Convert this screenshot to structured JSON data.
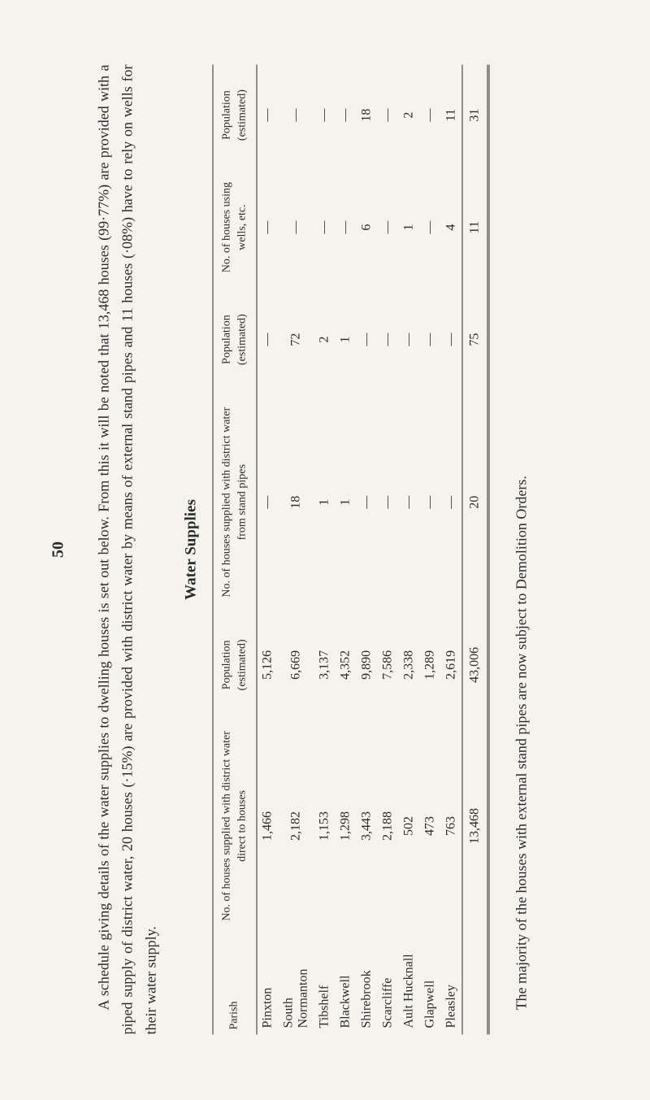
{
  "page_number": "50",
  "intro": "A schedule giving details of the water supplies to dwelling houses is set out below. From this it will be noted that 13,468 houses (99·77%) are provided with a piped supply of district water, 20 houses (·15%) are provided with district water by means of external stand pipes and 11 houses (·08%) have to rely on wells for their water supply.",
  "table_title": "Water Supplies",
  "headers": {
    "parish": "Parish",
    "col1": "No. of houses supplied with district water direct to houses",
    "col2": "Population (estimated)",
    "col3": "No. of houses supplied with district water from stand pipes",
    "col4": "Population (estimated)",
    "col5": "No. of houses using wells, etc.",
    "col6": "Population (estimated)"
  },
  "rows": [
    {
      "parish": "Pinxton",
      "c1": "1,466",
      "c2": "5,126",
      "c3": "—",
      "c4": "—",
      "c5": "—",
      "c6": "—"
    },
    {
      "parish": "South Normanton",
      "c1": "2,182",
      "c2": "6,669",
      "c3": "18",
      "c4": "72",
      "c5": "—",
      "c6": "—"
    },
    {
      "parish": "Tibshelf",
      "c1": "1,153",
      "c2": "3,137",
      "c3": "1",
      "c4": "2",
      "c5": "—",
      "c6": "—"
    },
    {
      "parish": "Blackwell",
      "c1": "1,298",
      "c2": "4,352",
      "c3": "1",
      "c4": "1",
      "c5": "—",
      "c6": "—"
    },
    {
      "parish": "Shirebrook",
      "c1": "3,443",
      "c2": "9,890",
      "c3": "—",
      "c4": "—",
      "c5": "6",
      "c6": "18"
    },
    {
      "parish": "Scarcliffe",
      "c1": "2,188",
      "c2": "7,586",
      "c3": "—",
      "c4": "—",
      "c5": "—",
      "c6": "—"
    },
    {
      "parish": "Ault Hucknall",
      "c1": "502",
      "c2": "2,338",
      "c3": "—",
      "c4": "—",
      "c5": "1",
      "c6": "2"
    },
    {
      "parish": "Glapwell",
      "c1": "473",
      "c2": "1,289",
      "c3": "—",
      "c4": "—",
      "c5": "—",
      "c6": "—"
    },
    {
      "parish": "Pleasley",
      "c1": "763",
      "c2": "2,619",
      "c3": "—",
      "c4": "—",
      "c5": "4",
      "c6": "11"
    }
  ],
  "totals": {
    "c1": "13,468",
    "c2": "43,006",
    "c3": "20",
    "c4": "75",
    "c5": "11",
    "c6": "31"
  },
  "footnote": "The majority of the houses with external stand pipes are now subject to Demolition Orders."
}
